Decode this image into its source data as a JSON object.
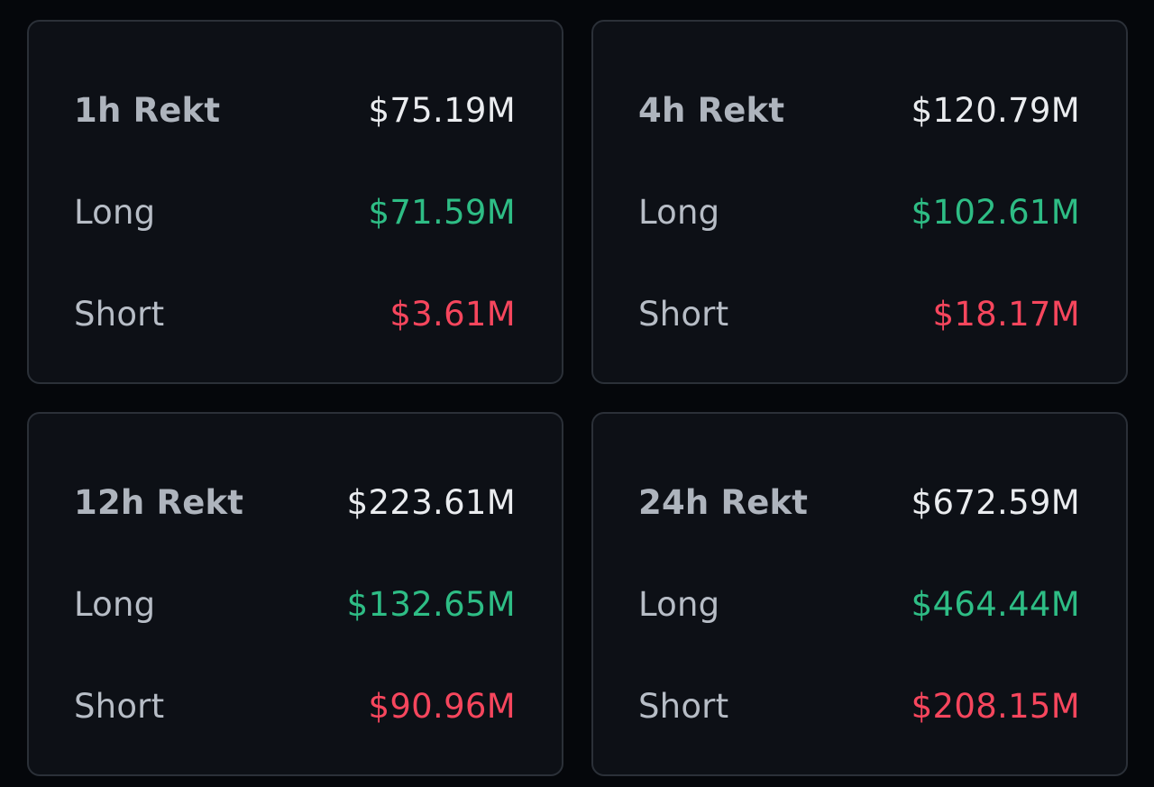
{
  "cards": [
    {
      "title": "1h Rekt",
      "total": "$75.19M",
      "long_label": "Long",
      "long_value": "$71.59M",
      "short_label": "Short",
      "short_value": "$3.61M"
    },
    {
      "title": "4h Rekt",
      "total": "$120.79M",
      "long_label": "Long",
      "long_value": "$102.61M",
      "short_label": "Short",
      "short_value": "$18.17M"
    },
    {
      "title": "12h Rekt",
      "total": "$223.61M",
      "long_label": "Long",
      "long_value": "$132.65M",
      "short_label": "Short",
      "short_value": "$90.96M"
    },
    {
      "title": "24h Rekt",
      "total": "$672.59M",
      "long_label": "Long",
      "long_value": "$464.44M",
      "short_label": "Short",
      "short_value": "$208.15M"
    }
  ],
  "colors": {
    "background": "#05070b",
    "card": "#0d1016",
    "border": "#2b3038",
    "long": "#2ebd85",
    "short": "#f6465d",
    "total": "#eaecef",
    "label": "#b7bdc6"
  }
}
